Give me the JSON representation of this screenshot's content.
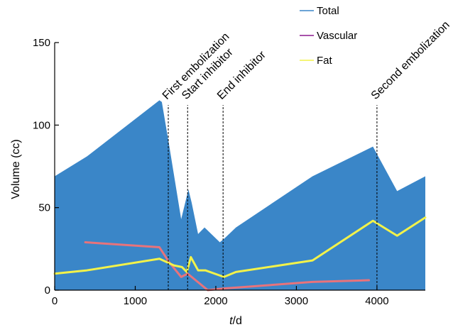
{
  "chart_data": {
    "type": "area",
    "title": "",
    "xlabel_var": "t",
    "xlabel_unit": "/d",
    "ylabel": "Volume (cc)",
    "xlim": [
      0,
      4600
    ],
    "ylim": [
      0,
      150
    ],
    "xticks": [
      0,
      1000,
      2000,
      3000,
      4000
    ],
    "yticks": [
      0,
      50,
      100,
      150
    ],
    "grid": false,
    "legend_position": "top-right",
    "series": [
      {
        "name": "Total",
        "color": "#3a86c8",
        "style": "filled-area",
        "points": [
          [
            0,
            69
          ],
          [
            400,
            81
          ],
          [
            1300,
            115
          ],
          [
            1330,
            114
          ],
          [
            1420,
            88
          ],
          [
            1570,
            43
          ],
          [
            1660,
            61
          ],
          [
            1700,
            53
          ],
          [
            1780,
            34
          ],
          [
            1860,
            38
          ],
          [
            2050,
            29
          ],
          [
            2100,
            31
          ],
          [
            2250,
            38
          ],
          [
            3200,
            69
          ],
          [
            3950,
            87
          ],
          [
            4250,
            60
          ],
          [
            4600,
            69
          ]
        ]
      },
      {
        "name": "Vascular",
        "color": "#e8737b",
        "legend_color": "#8b1a8f",
        "style": "line",
        "points": [
          [
            380,
            29
          ],
          [
            1300,
            26
          ],
          [
            1420,
            17
          ],
          [
            1570,
            8
          ],
          [
            1650,
            10
          ],
          [
            1700,
            8
          ],
          [
            1900,
            0
          ],
          [
            2100,
            1
          ],
          [
            3200,
            5
          ],
          [
            3900,
            6
          ]
        ]
      },
      {
        "name": "Fat",
        "color": "#f2f24a",
        "legend_color": "#f2f24a",
        "style": "line",
        "points": [
          [
            0,
            10
          ],
          [
            400,
            12
          ],
          [
            1300,
            19
          ],
          [
            1480,
            15
          ],
          [
            1580,
            14
          ],
          [
            1640,
            11
          ],
          [
            1690,
            20
          ],
          [
            1780,
            12
          ],
          [
            1870,
            12
          ],
          [
            2100,
            8
          ],
          [
            2250,
            11
          ],
          [
            3200,
            18
          ],
          [
            3950,
            42
          ],
          [
            4250,
            33
          ],
          [
            4600,
            44
          ]
        ]
      }
    ],
    "annotations": [
      {
        "x": 1410,
        "label": "First embolization"
      },
      {
        "x": 1650,
        "label": "Start inhibitor"
      },
      {
        "x": 2090,
        "label": "End inhibitor"
      },
      {
        "x": 4000,
        "label": "Second embolization"
      }
    ]
  }
}
